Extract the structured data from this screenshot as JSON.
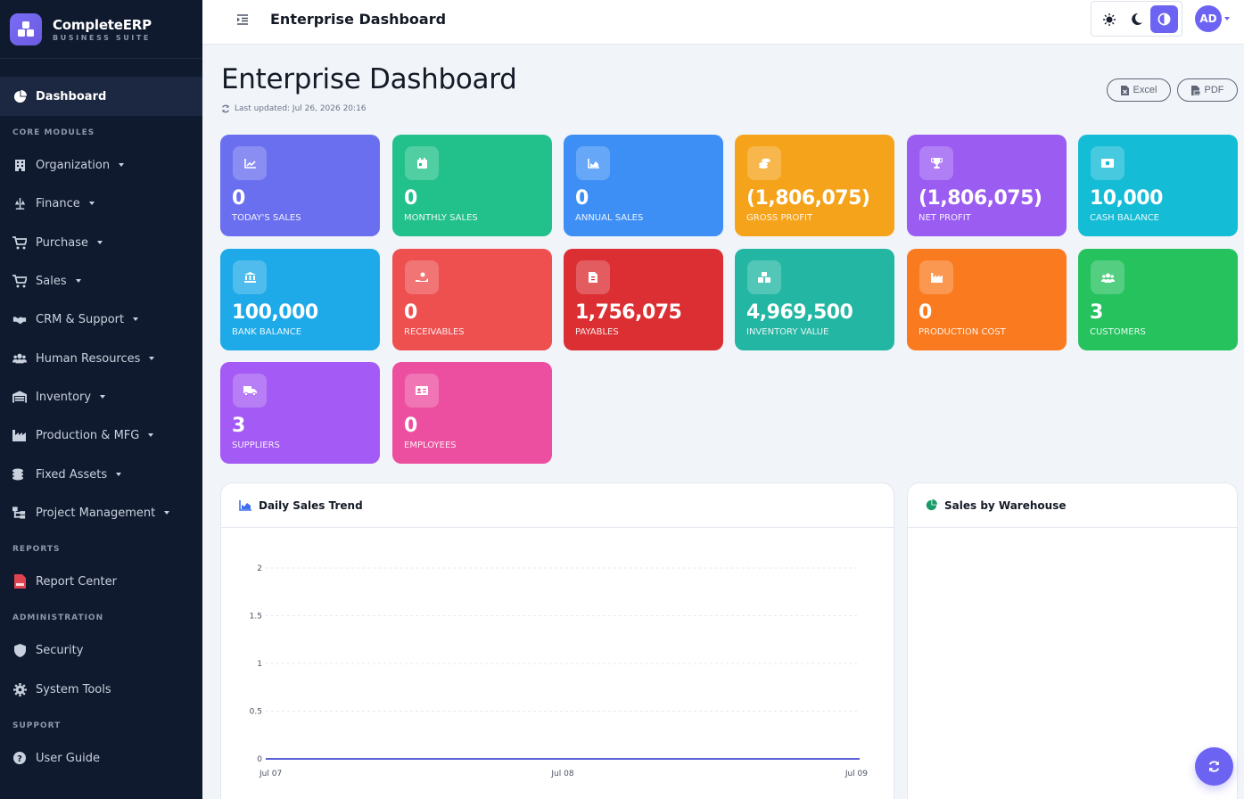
{
  "brand": {
    "name": "CompleteERP",
    "subtitle": "BUSINESS SUITE"
  },
  "sidebar": {
    "active_item": {
      "label": "Dashboard",
      "icon": "pie-chart-icon"
    },
    "sections": {
      "core_modules": "CORE MODULES",
      "reports": "REPORTS",
      "administration": "ADMINISTRATION",
      "support": "SUPPORT"
    },
    "core_items": [
      {
        "label": "Organization",
        "icon": "building-icon"
      },
      {
        "label": "Finance",
        "icon": "scale-icon"
      },
      {
        "label": "Purchase",
        "icon": "cart-icon"
      },
      {
        "label": "Sales",
        "icon": "cart-icon"
      },
      {
        "label": "CRM & Support",
        "icon": "handshake-icon"
      },
      {
        "label": "Human Resources",
        "icon": "users-icon"
      },
      {
        "label": "Inventory",
        "icon": "warehouse-icon"
      },
      {
        "label": "Production & MFG",
        "icon": "industry-icon"
      },
      {
        "label": "Fixed Assets",
        "icon": "coins-icon"
      },
      {
        "label": "Project Management",
        "icon": "project-diagram-icon"
      }
    ],
    "report_items": [
      {
        "label": "Report Center",
        "icon": "pdf-file-icon"
      }
    ],
    "admin_items": [
      {
        "label": "Security",
        "icon": "shield-icon"
      },
      {
        "label": "System Tools",
        "icon": "cog-icon"
      }
    ],
    "support_items": [
      {
        "label": "User Guide",
        "icon": "question-circle-icon"
      }
    ]
  },
  "header": {
    "title": "Enterprise Dashboard",
    "theme_options": [
      "light",
      "dark",
      "auto"
    ],
    "active_theme": "auto",
    "avatar_initials": "AD"
  },
  "page": {
    "title": "Enterprise Dashboard",
    "last_updated": "Last updated: Jul 26, 2026 20:16",
    "export_excel": "Excel",
    "export_pdf": "PDF"
  },
  "kpis": [
    {
      "value": "0",
      "label": "TODAY'S SALES",
      "color": "#6a6ff0",
      "icon": "chart-line-icon"
    },
    {
      "value": "0",
      "label": "MONTHLY SALES",
      "color": "#22c08a",
      "icon": "calendar-icon"
    },
    {
      "value": "0",
      "label": "ANNUAL SALES",
      "color": "#3d8ff6",
      "icon": "chart-area-icon"
    },
    {
      "value": "(1,806,075)",
      "label": "GROSS PROFIT",
      "color": "#f5a31a",
      "icon": "coins-icon"
    },
    {
      "value": "(1,806,075)",
      "label": "NET PROFIT",
      "color": "#9b5cf2",
      "icon": "trophy-icon"
    },
    {
      "value": "10,000",
      "label": "CASH BALANCE",
      "color": "#14bcd6",
      "icon": "money-bill-icon"
    },
    {
      "value": "100,000",
      "label": "BANK BALANCE",
      "color": "#1eaae8",
      "icon": "bank-icon"
    },
    {
      "value": "0",
      "label": "RECEIVABLES",
      "color": "#ee4f4f",
      "icon": "hand-holding-dollar-icon"
    },
    {
      "value": "1,756,075",
      "label": "PAYABLES",
      "color": "#dc2f33",
      "icon": "invoice-icon"
    },
    {
      "value": "4,969,500",
      "label": "INVENTORY VALUE",
      "color": "#22b6a3",
      "icon": "boxes-icon"
    },
    {
      "value": "0",
      "label": "PRODUCTION COST",
      "color": "#f97a1f",
      "icon": "industry-icon"
    },
    {
      "value": "3",
      "label": "CUSTOMERS",
      "color": "#25c25e",
      "icon": "users-icon"
    },
    {
      "value": "3",
      "label": "SUPPLIERS",
      "color": "#a45af4",
      "icon": "truck-icon"
    },
    {
      "value": "0",
      "label": "EMPLOYEES",
      "color": "#ec4f9f",
      "icon": "id-card-icon"
    }
  ],
  "panels": {
    "sales_trend_title": "Daily Sales Trend",
    "warehouse_title": "Sales by Warehouse"
  },
  "chart_data": {
    "type": "line",
    "title": "Daily Sales Trend",
    "x": [
      "Jul 07",
      "Jul 08",
      "Jul 09"
    ],
    "series": [
      {
        "values": [
          0,
          0,
          0
        ]
      }
    ],
    "ylim": [
      0,
      2
    ],
    "y_ticks": [
      "0",
      "0.5",
      "1",
      "1.5",
      "2"
    ],
    "grid": true,
    "line_color": "#5b5fd6"
  }
}
